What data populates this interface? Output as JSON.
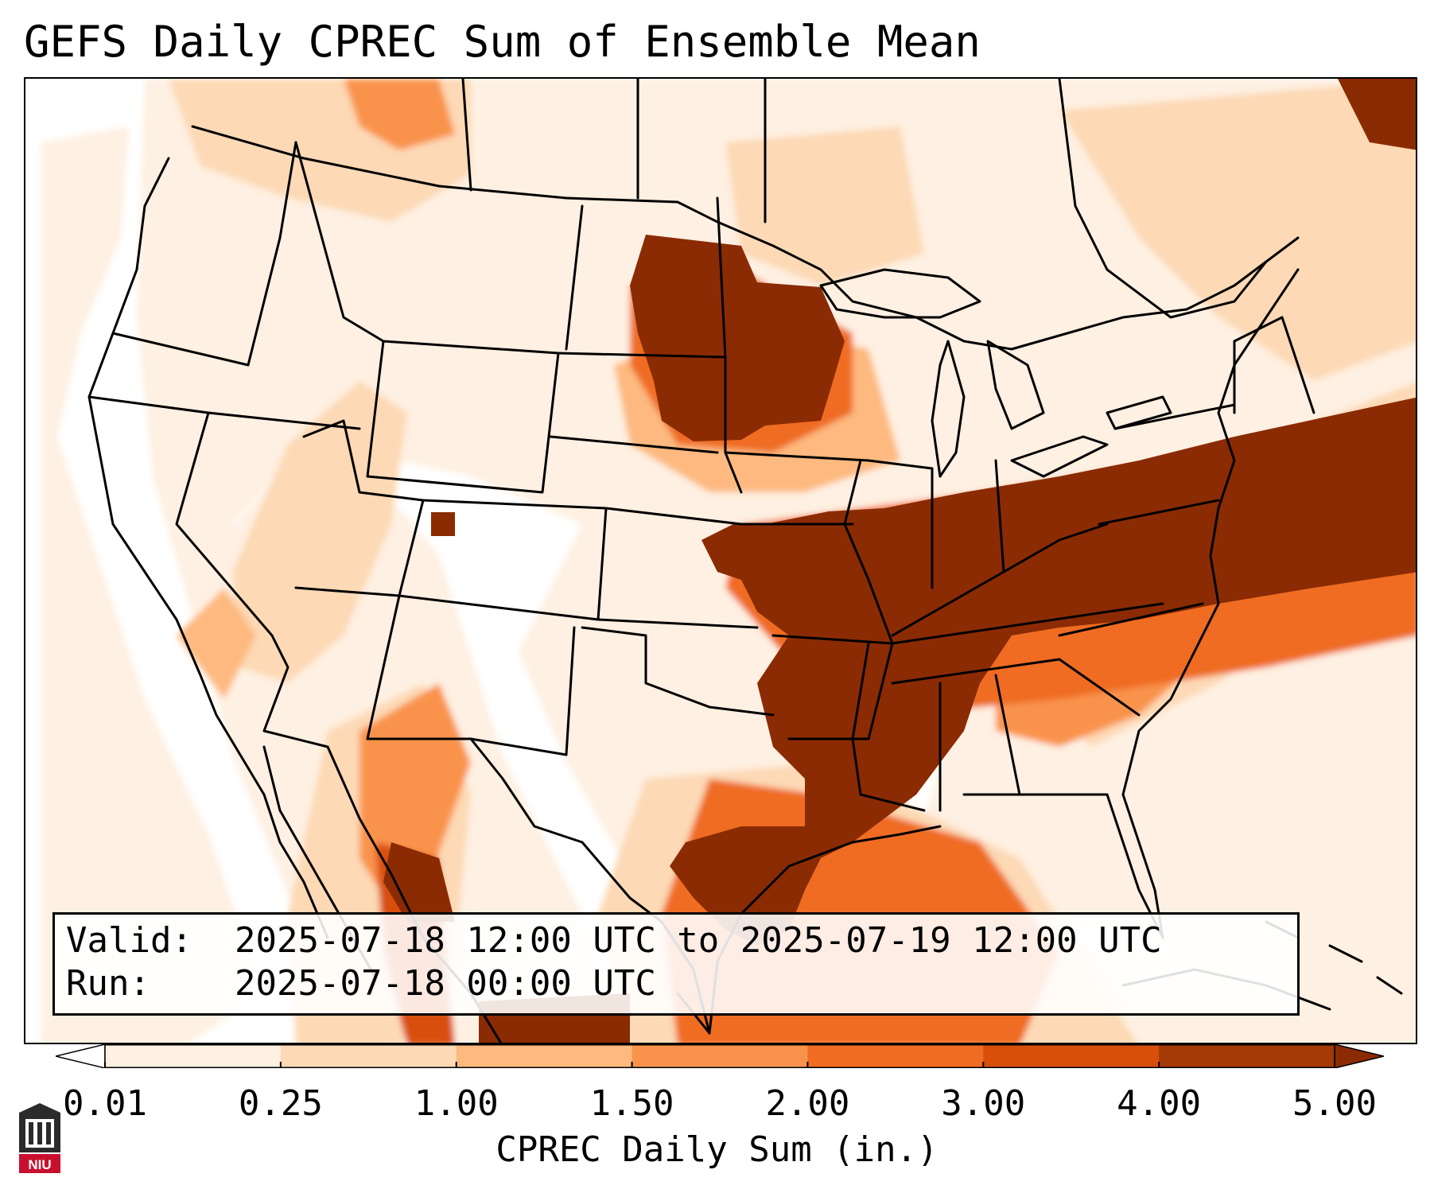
{
  "title": "GEFS Daily CPREC Sum of Ensemble Mean",
  "info": {
    "valid_key": "Valid:",
    "valid_value": "2025-07-18 12:00 UTC to 2025-07-19 12:00 UTC",
    "run_key": "Run:",
    "run_value": "2025-07-18 00:00 UTC"
  },
  "colorbar": {
    "label": "CPREC Daily Sum (in.)",
    "ticks": [
      "0.01",
      "0.25",
      "1.00",
      "1.50",
      "2.00",
      "3.00",
      "4.00",
      "5.00"
    ],
    "colors": [
      "#fef0e2",
      "#fdd9b5",
      "#fdb97f",
      "#f9934c",
      "#ef6c22",
      "#d84f0c",
      "#a43a05"
    ],
    "under_color": "#ffffff",
    "over_color": "#8b2b03"
  },
  "logo": {
    "text": "NIU",
    "accent": "#c8102e"
  }
}
